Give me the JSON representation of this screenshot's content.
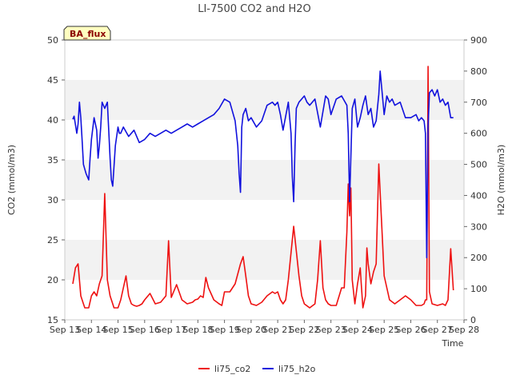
{
  "chart_data": {
    "type": "line",
    "title": "LI-7500 CO2 and H2O",
    "badge": "BA_flux",
    "xlabel": "Time",
    "ylabel_left": "CO2 (mmol/m3)",
    "ylabel_right": "H2O (mmol/m3)",
    "x_ticks": [
      "Sep 13",
      "Sep 14",
      "Sep 15",
      "Sep 16",
      "Sep 17",
      "Sep 18",
      "Sep 19",
      "Sep 20",
      "Sep 21",
      "Sep 22",
      "Sep 23",
      "Sep 24",
      "Sep 25",
      "Sep 26",
      "Sep 27",
      "Sep 28"
    ],
    "xlim": [
      0,
      15
    ],
    "ylim_left": [
      15,
      50
    ],
    "ylim_right": [
      0,
      900
    ],
    "y_ticks_left": [
      15,
      20,
      25,
      30,
      35,
      40,
      45,
      50
    ],
    "y_ticks_right": [
      0,
      100,
      200,
      300,
      400,
      500,
      600,
      700,
      800,
      900
    ],
    "grid": "horizontal bands",
    "legend_position": "bottom-center",
    "series": [
      {
        "name": "li75_co2",
        "axis": "left",
        "color": "#ee1111",
        "x": [
          0.3,
          0.4,
          0.5,
          0.6,
          0.7,
          0.75,
          0.8,
          0.9,
          1.0,
          1.1,
          1.2,
          1.3,
          1.4,
          1.5,
          1.6,
          1.7,
          1.8,
          1.85,
          1.9,
          1.95,
          2.0,
          2.1,
          2.2,
          2.3,
          2.4,
          2.5,
          2.6,
          2.7,
          2.8,
          2.9,
          3.0,
          3.2,
          3.4,
          3.6,
          3.8,
          3.9,
          4.0,
          4.2,
          4.4,
          4.6,
          4.8,
          4.9,
          5.0,
          5.1,
          5.2,
          5.3,
          5.4,
          5.6,
          5.8,
          5.9,
          6.0,
          6.2,
          6.4,
          6.6,
          6.7,
          6.8,
          6.9,
          7.0,
          7.2,
          7.4,
          7.6,
          7.8,
          7.9,
          8.0,
          8.1,
          8.2,
          8.3,
          8.4,
          8.6,
          8.8,
          8.9,
          9.0,
          9.2,
          9.4,
          9.5,
          9.6,
          9.7,
          9.8,
          9.9,
          10.0,
          10.2,
          10.4,
          10.5,
          10.6,
          10.65,
          10.7,
          10.75,
          10.8,
          10.9,
          11.0,
          11.1,
          11.15,
          11.2,
          11.3,
          11.35,
          11.4,
          11.5,
          11.6,
          11.7,
          11.8,
          12.0,
          12.2,
          12.4,
          12.6,
          12.8,
          13.0,
          13.2,
          13.4,
          13.5,
          13.55,
          13.6,
          13.65,
          13.7,
          13.8,
          14.0,
          14.2,
          14.3,
          14.4,
          14.5,
          14.6
        ],
        "values": [
          19.5,
          21.5,
          22.0,
          18.0,
          17.0,
          16.5,
          16.5,
          16.5,
          18.0,
          18.5,
          18.0,
          19.5,
          20.5,
          30.8,
          20.0,
          18.0,
          17.0,
          16.5,
          16.5,
          16.5,
          16.5,
          17.5,
          19.0,
          20.5,
          18.0,
          17.0,
          16.8,
          16.7,
          16.8,
          17.0,
          17.5,
          18.3,
          17.0,
          17.2,
          18.0,
          24.9,
          17.8,
          19.4,
          17.5,
          17.0,
          17.2,
          17.5,
          17.6,
          18.0,
          17.8,
          20.3,
          19.0,
          17.5,
          17.0,
          16.8,
          18.5,
          18.5,
          19.5,
          22.0,
          22.9,
          20.5,
          18.0,
          17.0,
          16.8,
          17.2,
          18.0,
          18.5,
          18.3,
          18.5,
          17.5,
          17.0,
          17.5,
          20.0,
          26.7,
          20.5,
          18.0,
          17.0,
          16.5,
          17.0,
          20.0,
          24.9,
          19.0,
          17.5,
          17.0,
          16.8,
          16.8,
          19.0,
          19.0,
          26.0,
          32.0,
          28.0,
          31.5,
          20.0,
          17.0,
          19.5,
          21.5,
          19.0,
          16.5,
          18.0,
          24.0,
          22.0,
          19.5,
          21.0,
          22.0,
          34.5,
          20.5,
          17.5,
          17.0,
          17.5,
          18.0,
          17.5,
          16.8,
          16.8,
          17.0,
          17.5,
          17.5,
          46.7,
          18.5,
          17.0,
          16.8,
          17.0,
          16.8,
          17.5,
          23.9,
          18.7
        ]
      },
      {
        "name": "li75_h2o",
        "axis": "right",
        "color": "#1111dd",
        "x": [
          0.3,
          0.35,
          0.45,
          0.5,
          0.55,
          0.6,
          0.65,
          0.7,
          0.8,
          0.9,
          0.95,
          1.0,
          1.1,
          1.2,
          1.25,
          1.3,
          1.35,
          1.4,
          1.5,
          1.6,
          1.7,
          1.75,
          1.8,
          1.9,
          2.0,
          2.05,
          2.1,
          2.2,
          2.4,
          2.6,
          2.8,
          3.0,
          3.2,
          3.4,
          3.6,
          3.8,
          4.0,
          4.2,
          4.4,
          4.6,
          4.8,
          5.0,
          5.2,
          5.4,
          5.6,
          5.8,
          6.0,
          6.2,
          6.4,
          6.5,
          6.55,
          6.6,
          6.65,
          6.7,
          6.8,
          6.9,
          7.0,
          7.2,
          7.4,
          7.6,
          7.8,
          7.9,
          8.0,
          8.1,
          8.2,
          8.4,
          8.5,
          8.55,
          8.6,
          8.65,
          8.7,
          8.8,
          9.0,
          9.1,
          9.2,
          9.4,
          9.6,
          9.8,
          9.9,
          10.0,
          10.2,
          10.4,
          10.6,
          10.65,
          10.7,
          10.8,
          10.9,
          11.0,
          11.1,
          11.2,
          11.3,
          11.4,
          11.5,
          11.6,
          11.7,
          11.8,
          11.85,
          12.0,
          12.1,
          12.2,
          12.3,
          12.4,
          12.6,
          12.8,
          13.0,
          13.2,
          13.3,
          13.4,
          13.5,
          13.55,
          13.6,
          13.65,
          13.7,
          13.8,
          13.9,
          14.0,
          14.1,
          14.2,
          14.3,
          14.4,
          14.5,
          14.6
        ],
        "values": [
          645,
          655,
          600,
          630,
          700,
          650,
          580,
          500,
          470,
          450,
          520,
          580,
          650,
          610,
          520,
          560,
          620,
          700,
          680,
          700,
          520,
          450,
          430,
          560,
          620,
          600,
          600,
          620,
          590,
          610,
          570,
          580,
          600,
          590,
          600,
          610,
          600,
          610,
          620,
          630,
          620,
          630,
          640,
          650,
          660,
          680,
          710,
          700,
          640,
          560,
          470,
          410,
          620,
          660,
          680,
          640,
          650,
          620,
          640,
          690,
          700,
          690,
          700,
          660,
          610,
          700,
          600,
          460,
          380,
          560,
          680,
          700,
          720,
          700,
          690,
          710,
          620,
          720,
          710,
          660,
          710,
          720,
          690,
          600,
          380,
          680,
          710,
          620,
          650,
          690,
          720,
          660,
          680,
          620,
          640,
          725,
          800,
          660,
          720,
          700,
          710,
          690,
          700,
          650,
          650,
          660,
          640,
          650,
          640,
          600,
          200,
          620,
          730,
          740,
          720,
          740,
          700,
          710,
          690,
          700,
          650,
          650
        ]
      }
    ]
  }
}
